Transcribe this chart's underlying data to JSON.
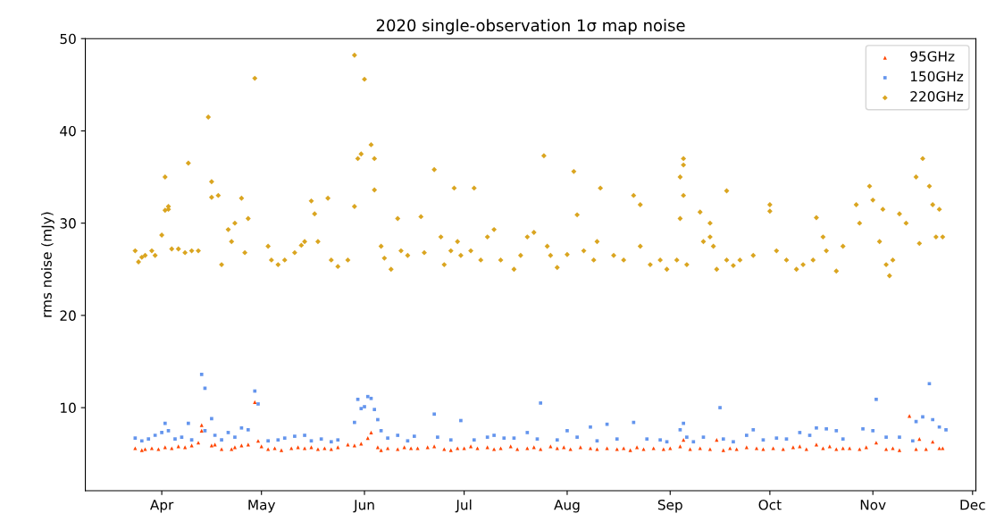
{
  "chart_data": {
    "type": "scatter",
    "title": "2020 single-observation 1σ map noise",
    "ylabel": "rms noise (mJy)",
    "xlim": [
      "2020-03-09",
      "2020-12-02"
    ],
    "xticks": [
      {
        "value": "2020-04-01",
        "label": "Apr"
      },
      {
        "value": "2020-05-01",
        "label": "May"
      },
      {
        "value": "2020-06-01",
        "label": "Jun"
      },
      {
        "value": "2020-07-01",
        "label": "Jul"
      },
      {
        "value": "2020-08-01",
        "label": "Aug"
      },
      {
        "value": "2020-09-01",
        "label": "Sep"
      },
      {
        "value": "2020-10-01",
        "label": "Oct"
      },
      {
        "value": "2020-11-01",
        "label": "Nov"
      },
      {
        "value": "2020-12-01",
        "label": "Dec"
      }
    ],
    "ylim": [
      1,
      50
    ],
    "yticks": [
      10,
      20,
      30,
      40,
      50
    ],
    "grid": false,
    "legend": "top right",
    "series": [
      {
        "name": "95GHz",
        "color": "#ff4500",
        "marker": "triangle",
        "x": [
          "2020-03-24",
          "2020-03-26",
          "2020-03-27",
          "2020-03-29",
          "2020-03-31",
          "2020-04-02",
          "2020-04-04",
          "2020-04-06",
          "2020-04-08",
          "2020-04-10",
          "2020-04-12",
          "2020-04-13",
          "2020-04-13",
          "2020-04-16",
          "2020-04-17",
          "2020-04-19",
          "2020-04-22",
          "2020-04-23",
          "2020-04-25",
          "2020-04-27",
          "2020-04-29",
          "2020-04-30",
          "2020-05-01",
          "2020-05-03",
          "2020-05-05",
          "2020-05-07",
          "2020-05-10",
          "2020-05-12",
          "2020-05-14",
          "2020-05-16",
          "2020-05-18",
          "2020-05-20",
          "2020-05-22",
          "2020-05-24",
          "2020-05-27",
          "2020-05-29",
          "2020-05-31",
          "2020-06-02",
          "2020-06-03",
          "2020-06-05",
          "2020-06-06",
          "2020-06-08",
          "2020-06-11",
          "2020-06-13",
          "2020-06-15",
          "2020-06-17",
          "2020-06-20",
          "2020-06-22",
          "2020-06-25",
          "2020-06-27",
          "2020-06-29",
          "2020-07-01",
          "2020-07-03",
          "2020-07-05",
          "2020-07-08",
          "2020-07-10",
          "2020-07-12",
          "2020-07-15",
          "2020-07-17",
          "2020-07-20",
          "2020-07-22",
          "2020-07-24",
          "2020-07-27",
          "2020-07-29",
          "2020-07-31",
          "2020-08-02",
          "2020-08-05",
          "2020-08-08",
          "2020-08-10",
          "2020-08-13",
          "2020-08-16",
          "2020-08-18",
          "2020-08-20",
          "2020-08-22",
          "2020-08-24",
          "2020-08-27",
          "2020-08-30",
          "2020-09-01",
          "2020-09-04",
          "2020-09-05",
          "2020-09-07",
          "2020-09-10",
          "2020-09-13",
          "2020-09-15",
          "2020-09-17",
          "2020-09-19",
          "2020-09-21",
          "2020-09-24",
          "2020-09-27",
          "2020-09-29",
          "2020-10-02",
          "2020-10-05",
          "2020-10-08",
          "2020-10-10",
          "2020-10-12",
          "2020-10-15",
          "2020-10-17",
          "2020-10-19",
          "2020-10-21",
          "2020-10-23",
          "2020-10-25",
          "2020-10-28",
          "2020-10-30",
          "2020-11-02",
          "2020-11-05",
          "2020-11-07",
          "2020-11-09",
          "2020-11-12",
          "2020-11-14",
          "2020-11-15",
          "2020-11-17",
          "2020-11-19",
          "2020-11-21",
          "2020-11-22"
        ],
        "values": [
          5.6,
          5.4,
          5.5,
          5.6,
          5.5,
          5.7,
          5.6,
          5.8,
          5.7,
          5.9,
          6.2,
          8.1,
          7.5,
          5.9,
          6.0,
          5.5,
          5.5,
          5.7,
          5.9,
          6.0,
          10.6,
          6.4,
          5.8,
          5.5,
          5.6,
          5.4,
          5.6,
          5.7,
          5.6,
          5.7,
          5.5,
          5.6,
          5.5,
          5.7,
          6.0,
          5.9,
          6.1,
          6.7,
          7.3,
          5.7,
          5.4,
          5.6,
          5.5,
          5.7,
          5.6,
          5.6,
          5.7,
          5.8,
          5.5,
          5.4,
          5.6,
          5.6,
          5.8,
          5.6,
          5.7,
          5.5,
          5.6,
          5.8,
          5.5,
          5.6,
          5.7,
          5.5,
          5.8,
          5.6,
          5.7,
          5.5,
          5.7,
          5.6,
          5.5,
          5.6,
          5.5,
          5.6,
          5.4,
          5.7,
          5.5,
          5.6,
          5.5,
          5.6,
          5.8,
          6.5,
          5.5,
          5.6,
          5.5,
          6.5,
          5.4,
          5.6,
          5.5,
          5.7,
          5.6,
          5.5,
          5.6,
          5.5,
          5.7,
          5.8,
          5.5,
          6.0,
          5.6,
          5.8,
          5.5,
          5.6,
          5.6,
          5.5,
          5.7,
          6.2,
          5.5,
          5.6,
          5.4,
          9.1,
          5.5,
          6.6,
          5.5,
          6.3,
          5.6,
          5.6
        ]
      },
      {
        "name": "150GHz",
        "color": "#6495ed",
        "marker": "square",
        "x": [
          "2020-03-24",
          "2020-03-26",
          "2020-03-28",
          "2020-03-30",
          "2020-04-01",
          "2020-04-02",
          "2020-04-03",
          "2020-04-05",
          "2020-04-07",
          "2020-04-09",
          "2020-04-10",
          "2020-04-13",
          "2020-04-14",
          "2020-04-14",
          "2020-04-16",
          "2020-04-17",
          "2020-04-19",
          "2020-04-21",
          "2020-04-23",
          "2020-04-25",
          "2020-04-27",
          "2020-04-29",
          "2020-04-30",
          "2020-05-03",
          "2020-05-06",
          "2020-05-08",
          "2020-05-11",
          "2020-05-14",
          "2020-05-16",
          "2020-05-19",
          "2020-05-22",
          "2020-05-24",
          "2020-05-29",
          "2020-05-30",
          "2020-05-31",
          "2020-06-01",
          "2020-06-02",
          "2020-06-03",
          "2020-06-04",
          "2020-06-05",
          "2020-06-06",
          "2020-06-08",
          "2020-06-11",
          "2020-06-14",
          "2020-06-16",
          "2020-06-22",
          "2020-06-23",
          "2020-06-27",
          "2020-06-30",
          "2020-07-04",
          "2020-07-08",
          "2020-07-10",
          "2020-07-13",
          "2020-07-16",
          "2020-07-20",
          "2020-07-23",
          "2020-07-24",
          "2020-07-29",
          "2020-08-01",
          "2020-08-04",
          "2020-08-08",
          "2020-08-10",
          "2020-08-13",
          "2020-08-16",
          "2020-08-21",
          "2020-08-25",
          "2020-08-29",
          "2020-08-31",
          "2020-09-04",
          "2020-09-05",
          "2020-09-06",
          "2020-09-08",
          "2020-09-11",
          "2020-09-16",
          "2020-09-17",
          "2020-09-20",
          "2020-09-24",
          "2020-09-26",
          "2020-09-29",
          "2020-10-03",
          "2020-10-06",
          "2020-10-10",
          "2020-10-13",
          "2020-10-15",
          "2020-10-18",
          "2020-10-21",
          "2020-10-23",
          "2020-10-29",
          "2020-11-01",
          "2020-11-02",
          "2020-11-05",
          "2020-11-09",
          "2020-11-13",
          "2020-11-14",
          "2020-11-16",
          "2020-11-18",
          "2020-11-19",
          "2020-11-21",
          "2020-11-23"
        ],
        "values": [
          6.7,
          6.4,
          6.6,
          7.0,
          7.3,
          8.3,
          7.5,
          6.6,
          6.8,
          8.3,
          6.5,
          13.6,
          12.1,
          7.5,
          8.8,
          7.0,
          6.5,
          7.3,
          6.8,
          7.8,
          7.6,
          11.8,
          10.4,
          6.4,
          6.5,
          6.7,
          6.9,
          7.0,
          6.4,
          6.6,
          6.3,
          6.5,
          8.4,
          10.9,
          9.9,
          10.1,
          11.2,
          11.0,
          9.8,
          8.7,
          7.5,
          6.7,
          7.0,
          6.4,
          6.9,
          9.3,
          6.8,
          6.5,
          8.6,
          6.5,
          6.8,
          7.0,
          6.7,
          6.7,
          7.3,
          6.6,
          10.5,
          6.5,
          7.5,
          6.8,
          7.9,
          6.4,
          8.2,
          6.6,
          8.4,
          6.6,
          6.5,
          6.3,
          7.6,
          8.3,
          6.8,
          6.3,
          6.8,
          10.0,
          6.6,
          6.3,
          7.0,
          7.6,
          6.5,
          6.7,
          6.6,
          7.3,
          7.0,
          7.8,
          7.7,
          7.5,
          6.6,
          7.7,
          7.5,
          10.9,
          6.8,
          6.8,
          6.4,
          8.5,
          9.0,
          12.6,
          8.7,
          7.9,
          7.6
        ]
      },
      {
        "name": "220GHz",
        "color": "#daa520",
        "marker": "diamond",
        "x": [
          "2020-03-24",
          "2020-03-25",
          "2020-03-26",
          "2020-03-27",
          "2020-03-29",
          "2020-03-30",
          "2020-04-01",
          "2020-04-02",
          "2020-04-02",
          "2020-04-03",
          "2020-04-03",
          "2020-04-04",
          "2020-04-06",
          "2020-04-08",
          "2020-04-09",
          "2020-04-10",
          "2020-04-12",
          "2020-04-15",
          "2020-04-16",
          "2020-04-16",
          "2020-04-18",
          "2020-04-19",
          "2020-04-21",
          "2020-04-22",
          "2020-04-23",
          "2020-04-25",
          "2020-04-26",
          "2020-04-27",
          "2020-04-29",
          "2020-05-03",
          "2020-05-04",
          "2020-05-06",
          "2020-05-08",
          "2020-05-11",
          "2020-05-13",
          "2020-05-14",
          "2020-05-16",
          "2020-05-17",
          "2020-05-18",
          "2020-05-21",
          "2020-05-22",
          "2020-05-24",
          "2020-05-27",
          "2020-05-29",
          "2020-05-29",
          "2020-05-30",
          "2020-05-31",
          "2020-06-01",
          "2020-06-03",
          "2020-06-04",
          "2020-06-04",
          "2020-06-06",
          "2020-06-07",
          "2020-06-09",
          "2020-06-11",
          "2020-06-12",
          "2020-06-14",
          "2020-06-18",
          "2020-06-19",
          "2020-06-22",
          "2020-06-24",
          "2020-06-25",
          "2020-06-27",
          "2020-06-28",
          "2020-06-29",
          "2020-06-30",
          "2020-07-03",
          "2020-07-04",
          "2020-07-06",
          "2020-07-08",
          "2020-07-10",
          "2020-07-12",
          "2020-07-16",
          "2020-07-18",
          "2020-07-20",
          "2020-07-22",
          "2020-07-25",
          "2020-07-26",
          "2020-07-27",
          "2020-07-29",
          "2020-08-01",
          "2020-08-03",
          "2020-08-04",
          "2020-08-06",
          "2020-08-09",
          "2020-08-10",
          "2020-08-11",
          "2020-08-15",
          "2020-08-18",
          "2020-08-21",
          "2020-08-23",
          "2020-08-23",
          "2020-08-26",
          "2020-08-29",
          "2020-08-31",
          "2020-09-03",
          "2020-09-05",
          "2020-09-05",
          "2020-09-04",
          "2020-09-05",
          "2020-09-04",
          "2020-09-06",
          "2020-09-10",
          "2020-09-11",
          "2020-09-13",
          "2020-09-13",
          "2020-09-14",
          "2020-09-15",
          "2020-09-18",
          "2020-09-18",
          "2020-09-20",
          "2020-09-22",
          "2020-09-26",
          "2020-10-01",
          "2020-10-01",
          "2020-10-03",
          "2020-10-06",
          "2020-10-09",
          "2020-10-11",
          "2020-10-14",
          "2020-10-15",
          "2020-10-17",
          "2020-10-18",
          "2020-10-21",
          "2020-10-23",
          "2020-10-27",
          "2020-10-28",
          "2020-10-31",
          "2020-11-01",
          "2020-11-03",
          "2020-11-04",
          "2020-11-05",
          "2020-11-06",
          "2020-11-07",
          "2020-11-09",
          "2020-11-11",
          "2020-11-14",
          "2020-11-15",
          "2020-11-16",
          "2020-11-18",
          "2020-11-19",
          "2020-11-21",
          "2020-11-20",
          "2020-11-22"
        ],
        "values": [
          27,
          25.8,
          26.3,
          26.5,
          27,
          26.5,
          28.7,
          31.4,
          35,
          31.8,
          31.5,
          27.2,
          27.2,
          26.8,
          36.5,
          27,
          27,
          41.5,
          32.8,
          34.5,
          33,
          25.5,
          29.3,
          28,
          30,
          32.7,
          26.8,
          30.5,
          45.7,
          27.5,
          26,
          25.5,
          26,
          26.8,
          27.6,
          28,
          32.4,
          31,
          28,
          32.7,
          26,
          25.3,
          26,
          31.8,
          48.2,
          37,
          37.5,
          45.6,
          38.5,
          33.6,
          37,
          27.5,
          26.2,
          25,
          30.5,
          27,
          26.5,
          30.7,
          26.8,
          35.8,
          28.5,
          25.5,
          27,
          33.8,
          28,
          26.5,
          27,
          33.8,
          26,
          28.5,
          29.3,
          26,
          25,
          26.5,
          28.5,
          29,
          37.3,
          27.5,
          26.5,
          25.2,
          26.6,
          35.6,
          30.9,
          27,
          26,
          28,
          33.8,
          26.5,
          26,
          33,
          32,
          27.5,
          25.5,
          26,
          25,
          26,
          37,
          36.3,
          35,
          33,
          30.5,
          25.5,
          31.2,
          28,
          28.5,
          30,
          27.5,
          25,
          33.5,
          26,
          25.4,
          26,
          26.5,
          31.3,
          32,
          27,
          26,
          25,
          25.5,
          26,
          30.6,
          28.5,
          27,
          24.8,
          27.5,
          32,
          30,
          34,
          32.5,
          28,
          31.5,
          25.5,
          24.3,
          26,
          31,
          30,
          35,
          27.8,
          37,
          34,
          32,
          31.5,
          28.5,
          28.5
        ]
      }
    ]
  }
}
